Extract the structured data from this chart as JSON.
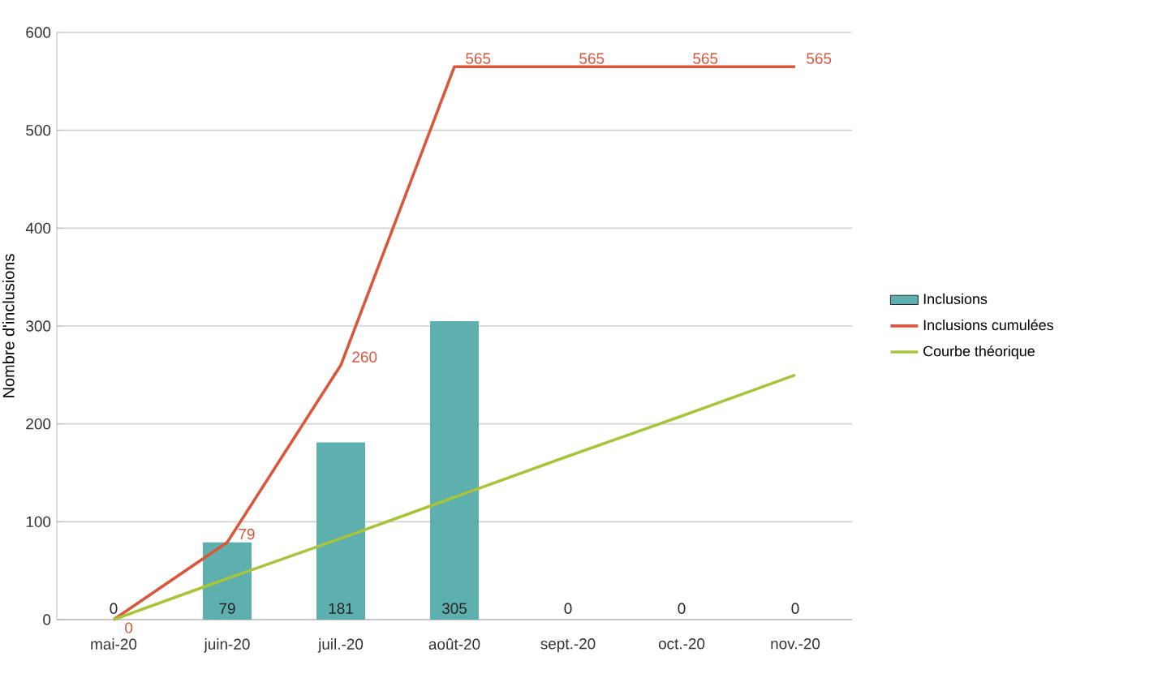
{
  "chart_data": {
    "type": "bar",
    "ylabel": "Nombre d'inclusions",
    "categories": [
      "mai-20",
      "juin-20",
      "juil.-20",
      "août-20",
      "sept.-20",
      "oct.-20",
      "nov.-20"
    ],
    "series": [
      {
        "name": "Inclusions",
        "color": "#5eb0ae",
        "values": [
          0,
          79,
          181,
          305,
          0,
          0,
          0
        ],
        "value_labels": [
          "0",
          "79",
          "181",
          "305",
          "0",
          "0",
          "0"
        ]
      },
      {
        "name": "Inclusions cumulées",
        "type": "line",
        "color": "#d9573c",
        "values": [
          0,
          79,
          260,
          565,
          565,
          565,
          565
        ],
        "data_labels": true
      },
      {
        "name": "Courbe théorique",
        "type": "line",
        "color": "#a8c43c",
        "values": [
          0,
          42,
          83,
          125,
          167,
          208,
          250
        ]
      }
    ],
    "ylim": [
      0,
      600
    ],
    "yticks": [
      0,
      100,
      200,
      300,
      400,
      500,
      600
    ],
    "grid": "y",
    "legend": "right",
    "marker": "none"
  }
}
